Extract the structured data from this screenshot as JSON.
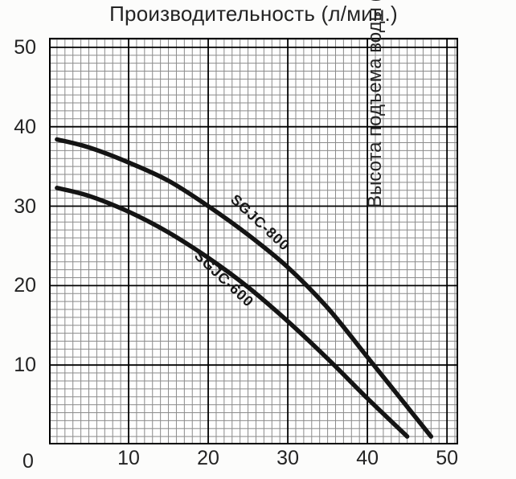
{
  "title": "Производительность (л/мин.)",
  "right_axis_label": "Высота подъема воды (метр)",
  "origin_label": "0",
  "colors": {
    "text": "#242424",
    "grid_minor": "#8b8b8b",
    "grid_major": "#000000",
    "plot_border": "#000000",
    "curve": "#141414",
    "plot_background": "#fefefe"
  },
  "chart_data": {
    "type": "line",
    "title": "Производительность (л/мин.)",
    "xlabel": "Производительность (л/мин.)",
    "ylabel": "Высота подъема воды (метр)",
    "xlim": [
      0,
      51.4
    ],
    "ylim": [
      0,
      51.2
    ],
    "x_tick_values": [
      0,
      10,
      20,
      30,
      40,
      50
    ],
    "x_tick_labels": [
      "0",
      "10",
      "20",
      "30",
      "40",
      "50"
    ],
    "y_tick_values": [
      0,
      10,
      20,
      30,
      40,
      50
    ],
    "y_tick_labels": [
      "0",
      "10",
      "20",
      "30",
      "40",
      "50"
    ],
    "grid": {
      "on": true,
      "minor_step": 1,
      "major_step": 10
    },
    "legend_position": "labels-on-curves",
    "series": [
      {
        "name": "SGJC-800",
        "x": [
          1,
          5,
          10,
          15,
          20,
          25,
          30,
          35,
          40,
          44,
          48
        ],
        "y": [
          38.4,
          37.4,
          35.5,
          33.2,
          30.0,
          26.4,
          22.3,
          17.2,
          11.0,
          6.0,
          1.0
        ]
      },
      {
        "name": "SGJC-600",
        "x": [
          1,
          5,
          10,
          15,
          20,
          25,
          30,
          35,
          40,
          45
        ],
        "y": [
          32.3,
          31.3,
          29.3,
          26.7,
          23.5,
          19.8,
          15.5,
          10.8,
          5.8,
          1.0
        ]
      }
    ]
  }
}
